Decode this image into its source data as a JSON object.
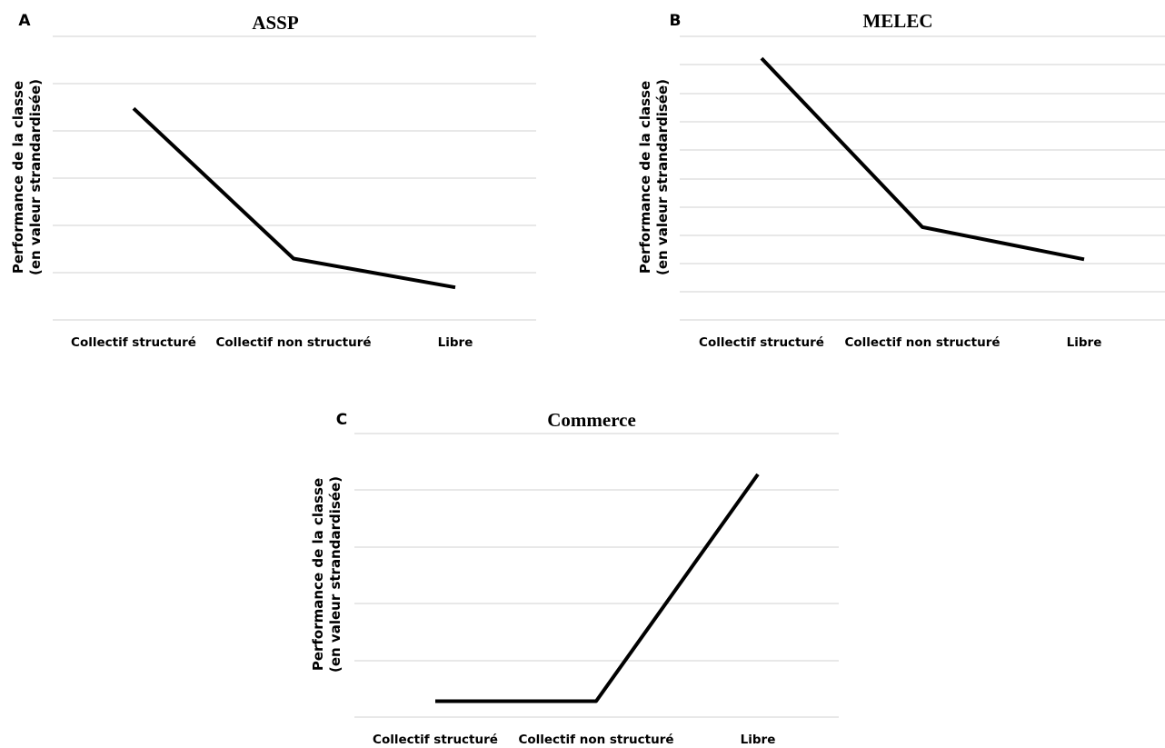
{
  "chart_data": [
    {
      "type": "line",
      "panel": "A",
      "title": "ASSP",
      "ylabel": [
        "Performance de la classe",
        "(en valeur strandardisée)"
      ],
      "xlabel": "",
      "categories": [
        "Collectif structuré",
        "Collectif non structuré",
        "Libre"
      ],
      "values": [
        4.45,
        1.22,
        0.6
      ],
      "ylim": [
        -0.1,
        6.0
      ],
      "grid": true,
      "legend": "none"
    },
    {
      "type": "line",
      "panel": "B",
      "title": "MELEC",
      "ylabel": [
        "Performance de la classe",
        "(en valeur strandardisée)"
      ],
      "xlabel": "",
      "categories": [
        "Collectif structuré",
        "Collectif non structuré",
        "Libre"
      ],
      "values": [
        9.15,
        2.6,
        1.35
      ],
      "ylim": [
        -1.0,
        10.0
      ],
      "grid": true,
      "legend": "none"
    },
    {
      "type": "line",
      "panel": "C",
      "title": "Commerce",
      "ylabel": [
        "Performance de la classe",
        "(en valeur strandardisée)"
      ],
      "xlabel": "",
      "categories": [
        "Collectif structuré",
        "Collectif non structuré",
        "Libre"
      ],
      "values": [
        0.28,
        0.28,
        4.28
      ],
      "ylim": [
        0.0,
        5.0
      ],
      "grid": true,
      "legend": "none"
    }
  ]
}
